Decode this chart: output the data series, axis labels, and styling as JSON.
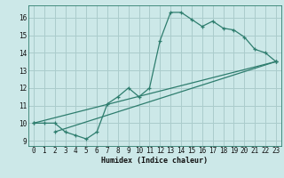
{
  "xlabel": "Humidex (Indice chaleur)",
  "bg_color": "#cce8e8",
  "grid_color": "#aacccc",
  "line_color": "#2e7d6e",
  "xlim": [
    -0.5,
    23.5
  ],
  "ylim": [
    8.7,
    16.7
  ],
  "yticks": [
    9,
    10,
    11,
    12,
    13,
    14,
    15,
    16
  ],
  "xticks": [
    0,
    1,
    2,
    3,
    4,
    5,
    6,
    7,
    8,
    9,
    10,
    11,
    12,
    13,
    14,
    15,
    16,
    17,
    18,
    19,
    20,
    21,
    22,
    23
  ],
  "line1_x": [
    0,
    1,
    2,
    3,
    4,
    5,
    6,
    7,
    8,
    9,
    10,
    11,
    12,
    13,
    14,
    15,
    16,
    17,
    18,
    19,
    20,
    21,
    22,
    23
  ],
  "line1_y": [
    10,
    10,
    10,
    9.5,
    9.3,
    9.1,
    9.5,
    11.1,
    11.5,
    12.0,
    11.5,
    12.0,
    14.7,
    16.3,
    16.3,
    15.9,
    15.5,
    15.8,
    15.4,
    15.3,
    14.9,
    14.2,
    14.0,
    13.5
  ],
  "line2_x": [
    0,
    23
  ],
  "line2_y": [
    10,
    13.5
  ],
  "line3_x": [
    2,
    23
  ],
  "line3_y": [
    9.5,
    13.5
  ]
}
